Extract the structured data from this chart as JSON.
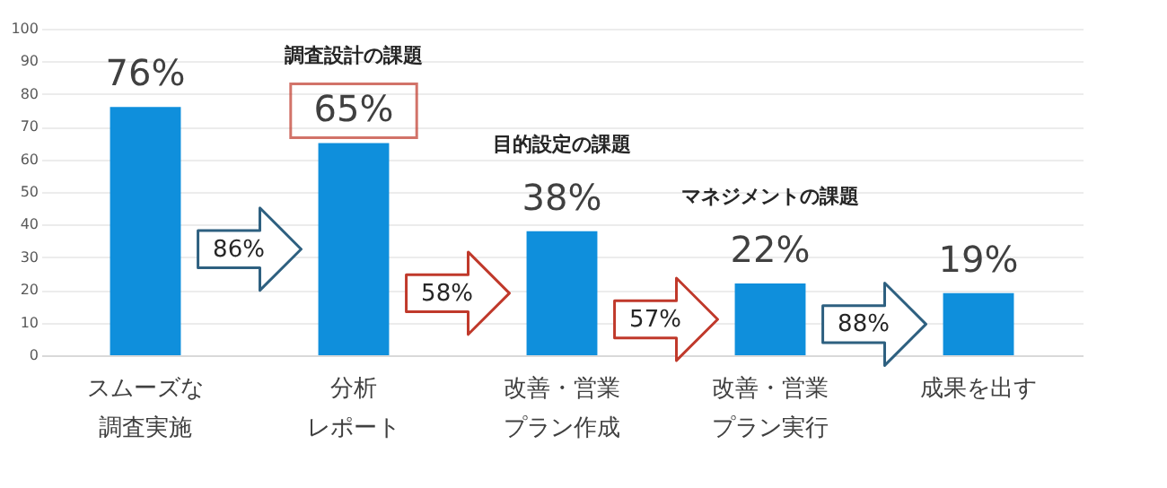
{
  "chart_data": {
    "type": "bar",
    "categories": [
      "スムーズな調査実施",
      "分析レポート",
      "改善・営業プラン作成",
      "改善・営業プラン実行",
      "成果を出す"
    ],
    "values": [
      76,
      65,
      38,
      22,
      19
    ],
    "value_labels": [
      "76%",
      "65%",
      "38%",
      "22%",
      "19%"
    ],
    "color": "#0f8fdc",
    "ylim": [
      0,
      100
    ],
    "yticks": [
      0,
      10,
      20,
      30,
      40,
      50,
      60,
      70,
      80,
      90,
      100
    ],
    "grid": "y",
    "annotations": [
      "86%",
      "58%",
      "57%",
      "88%",
      "調査設計の課題",
      "目的設定の課題",
      "マネジメントの課題"
    ]
  }
}
